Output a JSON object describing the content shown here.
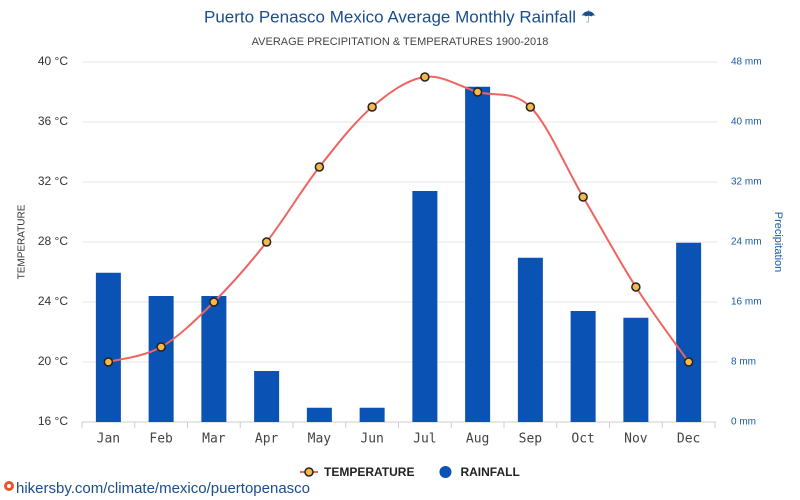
{
  "chart_data": {
    "type": "combo",
    "title": "Puerto Penasco Mexico Average Monthly Rainfall ☂",
    "subtitle": "AVERAGE PRECIPITATION & TEMPERATURES 1900-2018",
    "y_label": "TEMPERATURE",
    "y2_label": "Precipitation",
    "source": "hikersby.com/climate/mexico/puertopenasco",
    "categories": [
      "Jan",
      "Feb",
      "Mar",
      "Apr",
      "May",
      "Jun",
      "Jul",
      "Aug",
      "Sep",
      "Oct",
      "Nov",
      "Dec"
    ],
    "series": [
      {
        "name": "TEMPERATURE",
        "type": "line",
        "color": "#ee6461",
        "marker_color": "#f7b84b",
        "axis": "y",
        "values": [
          20,
          21,
          24,
          28,
          33,
          37,
          39,
          38,
          37,
          31,
          25,
          20
        ]
      },
      {
        "name": "RAINFALL",
        "type": "bar",
        "color": "#0a52b4",
        "axis": "y2",
        "values": [
          19.9,
          16.8,
          16.8,
          6.8,
          1.9,
          1.9,
          30.8,
          44.7,
          21.9,
          14.8,
          13.9,
          23.9
        ]
      }
    ],
    "ylim": [
      16,
      40
    ],
    "yticks": [
      {
        "value": 16,
        "label": "16 °C"
      },
      {
        "value": 20,
        "label": "20 °C"
      },
      {
        "value": 24,
        "label": "24 °C"
      },
      {
        "value": 28,
        "label": "28 °C"
      },
      {
        "value": 32,
        "label": "32 °C"
      },
      {
        "value": 36,
        "label": "36 °C"
      },
      {
        "value": 40,
        "label": "40 °C"
      }
    ],
    "y2lim": [
      0,
      48
    ],
    "y2ticks": [
      {
        "value": 0,
        "label": "0 mm"
      },
      {
        "value": 8,
        "label": "8 mm"
      },
      {
        "value": 16,
        "label": "16 mm"
      },
      {
        "value": 24,
        "label": "24 mm"
      },
      {
        "value": 32,
        "label": "32 mm"
      },
      {
        "value": 40,
        "label": "40 mm"
      },
      {
        "value": 48,
        "label": "48 mm"
      }
    ],
    "grid": true,
    "legend": "bottom"
  }
}
